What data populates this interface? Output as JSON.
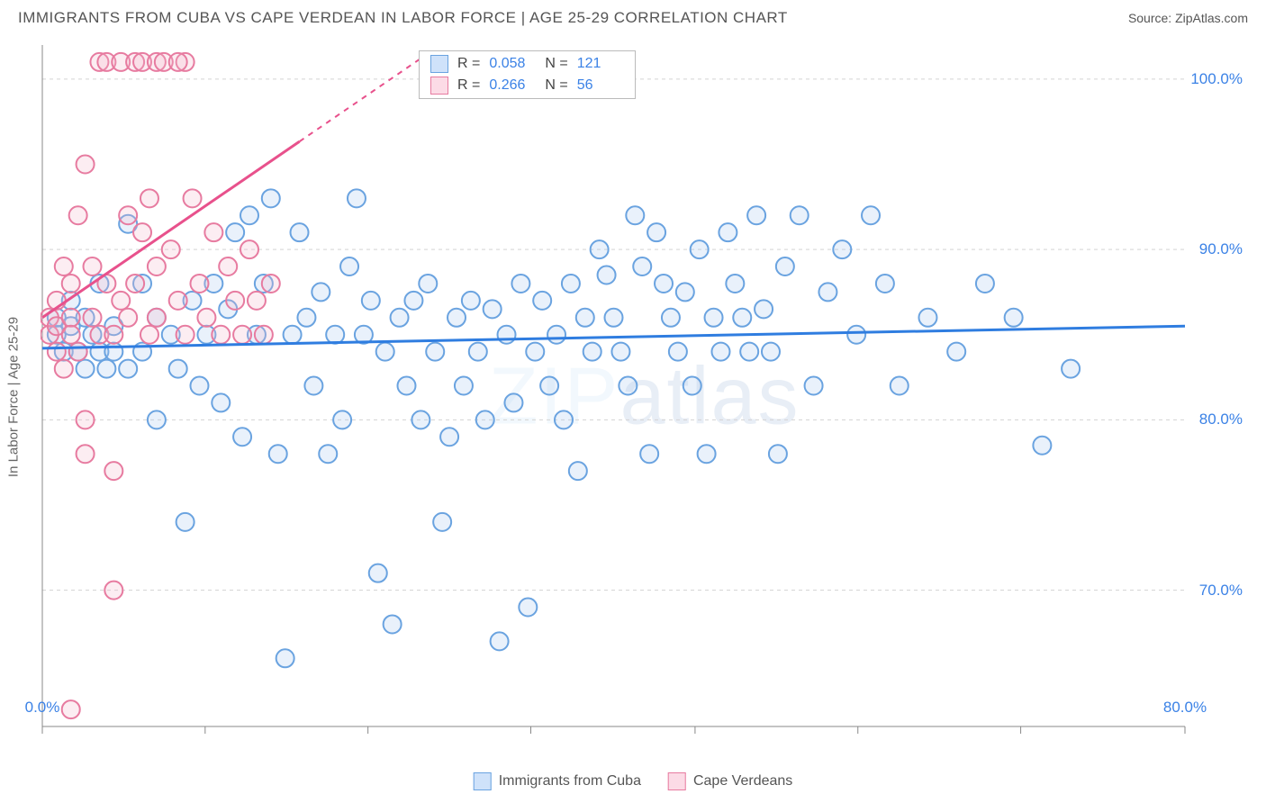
{
  "title": "IMMIGRANTS FROM CUBA VS CAPE VERDEAN IN LABOR FORCE | AGE 25-29 CORRELATION CHART",
  "source": "Source: ZipAtlas.com",
  "ylabel": "In Labor Force | Age 25-29",
  "watermark_light": "ZIP",
  "watermark_dark": "atlas",
  "chart": {
    "type": "scatter",
    "background_color": "#ffffff",
    "grid_color": "#d3d3d3",
    "grid_dash": "4,4",
    "axis_color": "#888888",
    "xlim": [
      0,
      80
    ],
    "ylim": [
      62,
      102
    ],
    "xtick_values": [
      0,
      80
    ],
    "xtick_labels": [
      "0.0%",
      "80.0%"
    ],
    "xtick_minor": [
      11.4,
      22.8,
      34.2,
      45.7,
      57.1,
      68.5
    ],
    "ytick_values": [
      70,
      80,
      90,
      100
    ],
    "ytick_labels": [
      "70.0%",
      "80.0%",
      "90.0%",
      "100.0%"
    ],
    "marker_radius": 10,
    "marker_stroke_width": 2,
    "marker_fill_opacity": 0.25,
    "tick_label_color": "#3b82e6",
    "tick_label_fontsize": 17
  },
  "series": [
    {
      "name": "Immigrants from Cuba",
      "fill_color": "#a8c9f0",
      "stroke_color": "#6aa3e0",
      "swatch_fill": "#cfe2fa",
      "swatch_border": "#6aa3e0",
      "R": "0.058",
      "N": "121",
      "trend": {
        "x1": 0,
        "y1": 84.2,
        "x2": 80,
        "y2": 85.5,
        "solid_until_x": 80,
        "color": "#2f7de0",
        "width": 3
      },
      "points": [
        [
          1,
          85
        ],
        [
          1,
          86
        ],
        [
          1.5,
          84
        ],
        [
          2,
          85.5
        ],
        [
          2,
          87
        ],
        [
          2.5,
          84
        ],
        [
          3,
          86
        ],
        [
          3,
          83
        ],
        [
          3.5,
          85
        ],
        [
          4,
          84
        ],
        [
          4,
          88
        ],
        [
          4.5,
          83
        ],
        [
          5,
          84
        ],
        [
          5,
          85.5
        ],
        [
          6,
          91.5
        ],
        [
          6,
          83
        ],
        [
          7,
          88
        ],
        [
          7,
          84
        ],
        [
          8,
          86
        ],
        [
          8,
          80
        ],
        [
          9,
          85
        ],
        [
          9.5,
          83
        ],
        [
          10,
          74
        ],
        [
          10.5,
          87
        ],
        [
          11,
          82
        ],
        [
          11.5,
          85
        ],
        [
          12,
          88
        ],
        [
          12.5,
          81
        ],
        [
          13,
          86.5
        ],
        [
          13.5,
          91
        ],
        [
          14,
          79
        ],
        [
          14.5,
          92
        ],
        [
          15,
          85
        ],
        [
          15.5,
          88
        ],
        [
          16,
          93
        ],
        [
          16.5,
          78
        ],
        [
          17,
          66
        ],
        [
          17.5,
          85
        ],
        [
          18,
          91
        ],
        [
          18.5,
          86
        ],
        [
          19,
          82
        ],
        [
          19.5,
          87.5
        ],
        [
          20,
          78
        ],
        [
          20.5,
          85
        ],
        [
          21,
          80
        ],
        [
          21.5,
          89
        ],
        [
          22,
          93
        ],
        [
          22.5,
          85
        ],
        [
          23,
          87
        ],
        [
          23.5,
          71
        ],
        [
          24,
          84
        ],
        [
          24.5,
          68
        ],
        [
          25,
          86
        ],
        [
          25.5,
          82
        ],
        [
          26,
          87
        ],
        [
          26.5,
          80
        ],
        [
          27,
          88
        ],
        [
          27.5,
          84
        ],
        [
          28,
          74
        ],
        [
          28.5,
          79
        ],
        [
          29,
          86
        ],
        [
          29.5,
          82
        ],
        [
          30,
          87
        ],
        [
          30.5,
          84
        ],
        [
          31,
          80
        ],
        [
          31.5,
          86.5
        ],
        [
          32,
          67
        ],
        [
          32.5,
          85
        ],
        [
          33,
          81
        ],
        [
          33.5,
          88
        ],
        [
          34,
          69
        ],
        [
          34.5,
          84
        ],
        [
          35,
          87
        ],
        [
          35.5,
          82
        ],
        [
          36,
          85
        ],
        [
          36.5,
          80
        ],
        [
          37,
          88
        ],
        [
          37.5,
          77
        ],
        [
          38,
          86
        ],
        [
          38.5,
          84
        ],
        [
          39,
          90
        ],
        [
          39.5,
          88.5
        ],
        [
          40,
          86
        ],
        [
          40.5,
          84
        ],
        [
          41,
          82
        ],
        [
          41.5,
          92
        ],
        [
          42,
          89
        ],
        [
          42.5,
          78
        ],
        [
          43,
          91
        ],
        [
          43.5,
          88
        ],
        [
          44,
          86
        ],
        [
          44.5,
          84
        ],
        [
          45,
          87.5
        ],
        [
          45.5,
          82
        ],
        [
          46,
          90
        ],
        [
          46.5,
          78
        ],
        [
          47,
          86
        ],
        [
          47.5,
          84
        ],
        [
          48,
          91
        ],
        [
          48.5,
          88
        ],
        [
          49,
          86
        ],
        [
          49.5,
          84
        ],
        [
          50,
          92
        ],
        [
          50.5,
          86.5
        ],
        [
          51,
          84
        ],
        [
          51.5,
          78
        ],
        [
          52,
          89
        ],
        [
          53,
          92
        ],
        [
          54,
          82
        ],
        [
          55,
          87.5
        ],
        [
          56,
          90
        ],
        [
          57,
          85
        ],
        [
          58,
          92
        ],
        [
          59,
          88
        ],
        [
          60,
          82
        ],
        [
          62,
          86
        ],
        [
          64,
          84
        ],
        [
          66,
          88
        ],
        [
          68,
          86
        ],
        [
          70,
          78.5
        ],
        [
          72,
          83
        ]
      ]
    },
    {
      "name": "Cape Verdeans",
      "fill_color": "#f5b8cb",
      "stroke_color": "#e77ba0",
      "swatch_fill": "#fcdbe6",
      "swatch_border": "#e77ba0",
      "R": "0.266",
      "N": "56",
      "trend": {
        "x1": 0,
        "y1": 86,
        "x2": 27,
        "y2": 101.5,
        "solid_until_x": 18,
        "color": "#e8518c",
        "width": 3
      },
      "points": [
        [
          0.5,
          85
        ],
        [
          0.5,
          86
        ],
        [
          1,
          85.5
        ],
        [
          1,
          87
        ],
        [
          1,
          84
        ],
        [
          1.5,
          89
        ],
        [
          1.5,
          83
        ],
        [
          2,
          86
        ],
        [
          2,
          88
        ],
        [
          2,
          85
        ],
        [
          2.5,
          92
        ],
        [
          2.5,
          84
        ],
        [
          3,
          95
        ],
        [
          3,
          78
        ],
        [
          3.5,
          86
        ],
        [
          3.5,
          89
        ],
        [
          4,
          85
        ],
        [
          4,
          101
        ],
        [
          4.5,
          88
        ],
        [
          4.5,
          101
        ],
        [
          5,
          70
        ],
        [
          5,
          85
        ],
        [
          5.5,
          87
        ],
        [
          5.5,
          101
        ],
        [
          6,
          86
        ],
        [
          6,
          92
        ],
        [
          6.5,
          88
        ],
        [
          6.5,
          101
        ],
        [
          7,
          91
        ],
        [
          7,
          101
        ],
        [
          7.5,
          85
        ],
        [
          7.5,
          93
        ],
        [
          8,
          89
        ],
        [
          8,
          86
        ],
        [
          8,
          101
        ],
        [
          8.5,
          101
        ],
        [
          9,
          90
        ],
        [
          9.5,
          87
        ],
        [
          10,
          85
        ],
        [
          10,
          101
        ],
        [
          10.5,
          93
        ],
        [
          11,
          88
        ],
        [
          11.5,
          86
        ],
        [
          12,
          91
        ],
        [
          12.5,
          85
        ],
        [
          13,
          89
        ],
        [
          13.5,
          87
        ],
        [
          14,
          85
        ],
        [
          14.5,
          90
        ],
        [
          15,
          87
        ],
        [
          15.5,
          85
        ],
        [
          16,
          88
        ],
        [
          2,
          63
        ],
        [
          5,
          77
        ],
        [
          3,
          80
        ],
        [
          9.5,
          101
        ]
      ]
    }
  ],
  "stats_legend_labels": {
    "R": "R =",
    "N": "N ="
  },
  "bottom_legend_labels": [
    "Immigrants from Cuba",
    "Cape Verdeans"
  ]
}
